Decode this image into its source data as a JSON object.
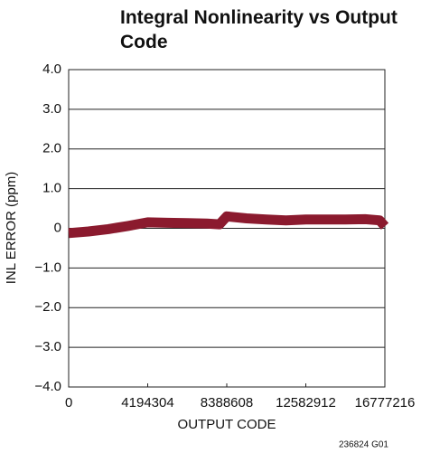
{
  "chart_data": {
    "type": "line",
    "title": "Integral Nonlinearity vs Output Code",
    "xlabel": "OUTPUT CODE",
    "ylabel": "INL ERROR (ppm)",
    "footnote": "236824 G01",
    "xlim": [
      0,
      16777216
    ],
    "xticks": [
      0,
      4194304,
      8388608,
      12582912,
      16777216
    ],
    "ylim": [
      -4,
      4
    ],
    "yticks": [
      {
        "value": -4,
        "label": "−4.0"
      },
      {
        "value": -3,
        "label": "−3.0"
      },
      {
        "value": -2,
        "label": "−2.0"
      },
      {
        "value": -1,
        "label": "−1.0"
      },
      0,
      {
        "value": 1,
        "label": "1.0"
      },
      {
        "value": 2,
        "label": "2.0"
      },
      {
        "value": 3,
        "label": "3.0"
      },
      {
        "value": 4,
        "label": "4.0"
      }
    ],
    "grid": true,
    "series": [
      {
        "color": "#8b1a2e",
        "x": [
          0,
          1048576,
          2097152,
          3145728,
          4194304,
          5242880,
          6291456,
          7340032,
          8000000,
          8388608,
          9437184,
          10485760,
          11534336,
          12582912,
          13631488,
          14680064,
          15728640,
          16500000,
          16777216
        ],
        "values": [
          -0.12,
          -0.08,
          -0.02,
          0.06,
          0.15,
          0.14,
          0.13,
          0.12,
          0.1,
          0.3,
          0.25,
          0.22,
          0.2,
          0.22,
          0.22,
          0.22,
          0.23,
          0.2,
          0.05
        ]
      }
    ]
  }
}
